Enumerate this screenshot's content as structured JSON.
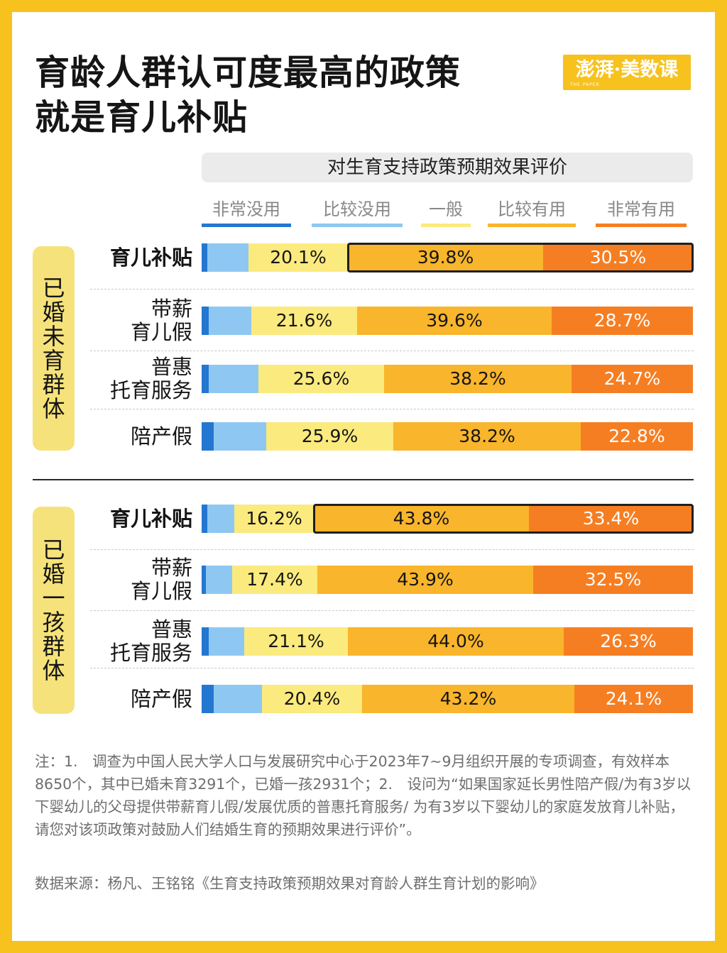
{
  "title": "育龄人群认可度最高的政策\n就是育儿补贴",
  "brand": {
    "text": "澎湃·美数课",
    "sub": "THE PAPER"
  },
  "colors": {
    "background": "#F7C21E",
    "非常没用": "#2477D1",
    "比较没用": "#8EC8F2",
    "一般": "#FBEA7E",
    "比较有用": "#F9B52B",
    "非常有用": "#F67E22"
  },
  "chart_data": {
    "type": "bar",
    "orientation": "horizontal",
    "stacked": true,
    "title": "对生育支持政策预期效果评价",
    "unit": "%",
    "legend": [
      "非常没用",
      "比较没用",
      "一般",
      "比较有用",
      "非常有用"
    ],
    "groups": [
      {
        "name": "已婚未育群体",
        "rows": [
          {
            "label": "育儿补贴",
            "highlight": true,
            "values": [
              1.2,
              8.4,
              20.1,
              39.8,
              30.5
            ],
            "labels": [
              null,
              null,
              "20.1%",
              "39.8%",
              "30.5%"
            ]
          },
          {
            "label": "带薪\n育儿假",
            "highlight": false,
            "values": [
              1.5,
              8.6,
              21.6,
              39.6,
              28.7
            ],
            "labels": [
              null,
              null,
              "21.6%",
              "39.6%",
              "28.7%"
            ]
          },
          {
            "label": "普惠\n托育服务",
            "highlight": false,
            "values": [
              1.5,
              10.0,
              25.6,
              38.2,
              24.7
            ],
            "labels": [
              null,
              null,
              "25.6%",
              "38.2%",
              "24.7%"
            ]
          },
          {
            "label": "陪产假",
            "highlight": false,
            "values": [
              2.5,
              10.6,
              25.9,
              38.2,
              22.8
            ],
            "labels": [
              null,
              null,
              "25.9%",
              "38.2%",
              "22.8%"
            ]
          }
        ]
      },
      {
        "name": "已婚一孩群体",
        "rows": [
          {
            "label": "育儿补贴",
            "highlight": true,
            "values": [
              1.2,
              5.4,
              16.2,
              43.8,
              33.4
            ],
            "labels": [
              null,
              null,
              "16.2%",
              "43.8%",
              "33.4%"
            ]
          },
          {
            "label": "带薪\n育儿假",
            "highlight": false,
            "values": [
              0.9,
              5.3,
              17.4,
              43.9,
              32.5
            ],
            "labels": [
              null,
              null,
              "17.4%",
              "43.9%",
              "32.5%"
            ]
          },
          {
            "label": "普惠\n托育服务",
            "highlight": false,
            "values": [
              1.5,
              7.1,
              21.1,
              44.0,
              26.3
            ],
            "labels": [
              null,
              null,
              "21.1%",
              "44.0%",
              "26.3%"
            ]
          },
          {
            "label": "陪产假",
            "highlight": false,
            "values": [
              2.5,
              9.8,
              20.4,
              43.2,
              24.1
            ],
            "labels": [
              null,
              null,
              "20.4%",
              "43.2%",
              "24.1%"
            ]
          }
        ]
      }
    ]
  },
  "notes": "注：1.　调查为中国人民大学人口与发展研究中心于2023年7~9月组织开展的专项调查，有效样本8650个，其中已婚未育3291个，已婚一孩2931个；2.　设问为“如果国家延长男性陪产假/为有3岁以下婴幼儿的父母提供带薪育儿假/发展优质的普惠托育服务/ 为有3岁以下婴幼儿的家庭发放育儿补贴，请您对该项政策对鼓励人们结婚生育的预期效果进行评价”。",
  "source": "数据来源：杨凡、王铭铭《生育支持政策预期效果对育龄人群生育计划的影响》"
}
